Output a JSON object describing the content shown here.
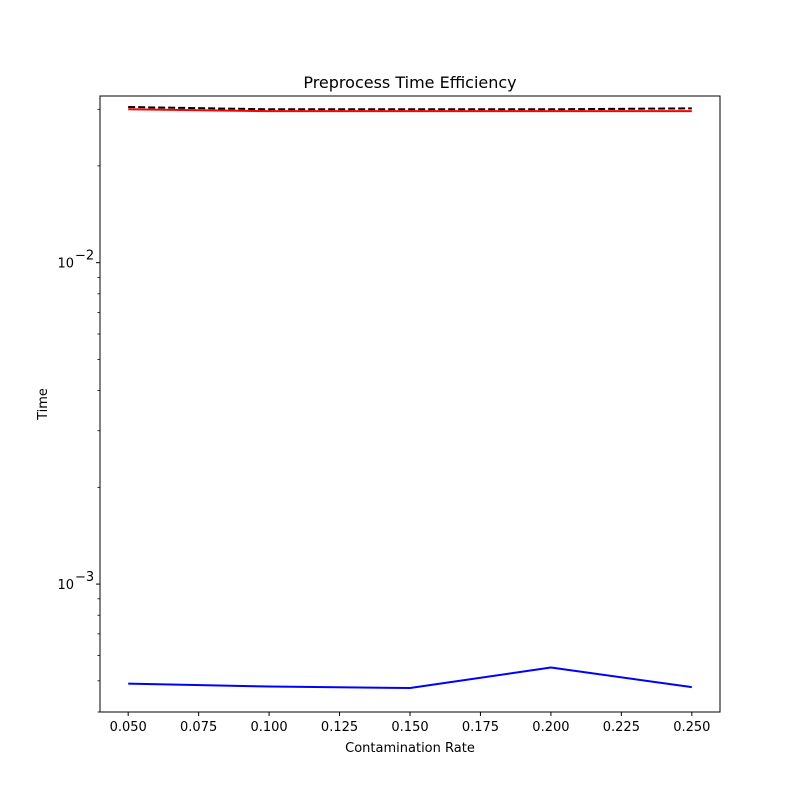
{
  "chart_data": {
    "type": "line",
    "title": "Preprocess Time Efficiency",
    "xlabel": "Contamination Rate",
    "ylabel": "Time",
    "x": [
      0.05,
      0.1,
      0.15,
      0.2,
      0.25
    ],
    "xlim": [
      0.04,
      0.26
    ],
    "x_ticks": [
      0.05,
      0.075,
      0.1,
      0.125,
      0.15,
      0.175,
      0.2,
      0.225,
      0.25
    ],
    "x_tick_labels": [
      "0.050",
      "0.075",
      "0.100",
      "0.125",
      "0.150",
      "0.175",
      "0.200",
      "0.225",
      "0.250"
    ],
    "yscale": "log",
    "ylim": [
      0.0004,
      0.033
    ],
    "y_major_ticks": [
      0.001,
      0.01
    ],
    "y_major_tick_labels": [
      {
        "base": "10",
        "exp": "−3"
      },
      {
        "base": "10",
        "exp": "−2"
      }
    ],
    "grid": false,
    "series": [
      {
        "color": "#000000",
        "dash": "dashed",
        "values": [
          0.0305,
          0.03,
          0.03,
          0.03,
          0.0302
        ]
      },
      {
        "color": "#ff0000",
        "dash": "solid",
        "values": [
          0.03,
          0.0296,
          0.0296,
          0.0296,
          0.0296
        ]
      },
      {
        "color": "#0000ff",
        "dash": "solid",
        "values": [
          0.00049,
          0.00048,
          0.000475,
          0.00055,
          0.000478
        ]
      }
    ]
  }
}
